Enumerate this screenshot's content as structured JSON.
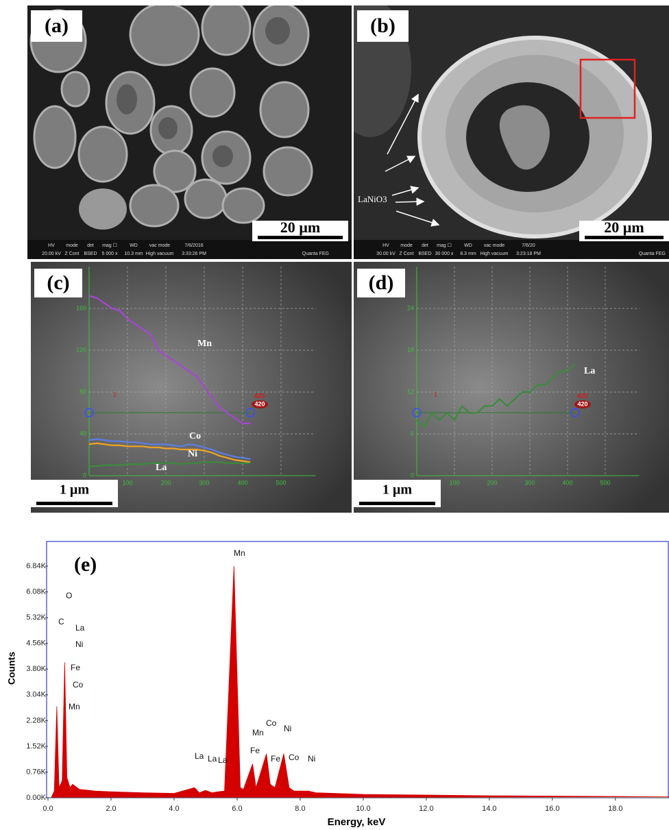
{
  "panels": [
    {
      "label": "(a)",
      "scale_bar": "20 µm",
      "instrument": "Quanta FEG",
      "info_headers": [
        "HV",
        "mode",
        "det",
        "mag ☐",
        "WD",
        "vac mode",
        "7/6/2016"
      ],
      "info_values": [
        "20.00 kV",
        "Z Cont",
        "BSED",
        "5 000 x",
        "10.3 mm",
        "High vacuum",
        "3:33:26 PM"
      ]
    },
    {
      "label": "(b)",
      "scale_bar": "20 µm",
      "instrument": "Quanta FEG",
      "annotation": "LaNiO3",
      "info_headers": [
        "HV",
        "mode",
        "det",
        "mag ☐",
        "WD",
        "vac mode",
        "7/6/20"
      ],
      "info_values": [
        "30.00 kV",
        "Z Cont",
        "BSED",
        "30 000 x",
        "8.3 mm",
        "High vacuum",
        "3:23:18 PM"
      ]
    }
  ],
  "chart_data": [
    {
      "type": "line",
      "panel_label": "(c)",
      "scale_bar": "1 µm",
      "cursor_start": "1",
      "cursor_end": "420",
      "x": [
        0,
        20,
        40,
        60,
        80,
        100,
        120,
        140,
        160,
        180,
        200,
        220,
        240,
        260,
        280,
        300,
        320,
        340,
        360,
        380,
        400,
        420
      ],
      "series": [
        {
          "name": "Mn",
          "color": "#a845d8",
          "values": [
            172,
            170,
            165,
            160,
            158,
            150,
            145,
            140,
            135,
            120,
            115,
            110,
            105,
            100,
            95,
            85,
            75,
            65,
            60,
            55,
            50,
            50
          ]
        },
        {
          "name": "Co",
          "color": "#5b7fe6",
          "values": [
            34,
            35,
            34,
            33,
            33,
            32,
            32,
            31,
            30,
            30,
            30,
            29,
            28,
            30,
            29,
            27,
            25,
            22,
            20,
            18,
            17,
            16
          ]
        },
        {
          "name": "Ni",
          "color": "#f0a424",
          "values": [
            30,
            31,
            30,
            29,
            29,
            28,
            28,
            28,
            27,
            27,
            26,
            26,
            25,
            25,
            25,
            24,
            22,
            19,
            17,
            15,
            14,
            13
          ]
        },
        {
          "name": "La",
          "color": "#3a8c3a",
          "values": [
            9,
            9,
            10,
            10,
            10,
            11,
            11,
            11,
            12,
            12,
            12,
            12,
            11,
            12,
            12,
            13,
            13,
            13,
            12,
            12,
            12,
            12
          ]
        }
      ],
      "xlim": [
        0,
        590
      ],
      "ylim": [
        0,
        200
      ],
      "xticks": [
        100,
        200,
        300,
        400,
        500
      ],
      "yticks": [
        0,
        40,
        80,
        120,
        160
      ],
      "grid": true
    },
    {
      "type": "line",
      "panel_label": "(d)",
      "scale_bar": "1 µm",
      "cursor_start": "1",
      "cursor_end": "420",
      "x": [
        0,
        20,
        40,
        60,
        80,
        100,
        120,
        140,
        160,
        180,
        200,
        220,
        240,
        260,
        280,
        300,
        320,
        340,
        360,
        380,
        400,
        420
      ],
      "series": [
        {
          "name": "La",
          "color": "#3a8c3a",
          "values": [
            8,
            7,
            9,
            8,
            9,
            8,
            10,
            9,
            9,
            10,
            10,
            11,
            10,
            11,
            12,
            12,
            13,
            13,
            14,
            15,
            15,
            16
          ]
        }
      ],
      "xlim": [
        0,
        590
      ],
      "ylim": [
        0,
        30
      ],
      "xticks": [
        100,
        200,
        300,
        400,
        500
      ],
      "yticks": [
        0,
        6,
        12,
        18,
        24
      ],
      "grid": true
    },
    {
      "type": "area",
      "panel_label": "(e)",
      "x_label": "Energy, keV",
      "y_label": "Counts",
      "color": "#d40000",
      "x": [
        0.1,
        0.2,
        0.28,
        0.35,
        0.45,
        0.53,
        0.6,
        0.7,
        0.78,
        0.85,
        1.0,
        1.5,
        2.0,
        3.0,
        4.0,
        4.65,
        4.8,
        5.0,
        5.2,
        5.4,
        5.6,
        5.9,
        6.1,
        6.2,
        6.49,
        6.6,
        6.93,
        7.05,
        7.2,
        7.48,
        7.65,
        7.8,
        8.26,
        8.5,
        10,
        12,
        14,
        16,
        18,
        19.7
      ],
      "values": [
        0,
        200,
        2700,
        300,
        500,
        4000,
        600,
        300,
        400,
        350,
        250,
        200,
        180,
        150,
        130,
        300,
        150,
        220,
        150,
        180,
        200,
        6840,
        300,
        250,
        1000,
        300,
        1300,
        400,
        300,
        1300,
        300,
        200,
        200,
        150,
        100,
        80,
        60,
        50,
        40,
        30
      ],
      "annotations": [
        "O",
        "C",
        "La",
        "Ni",
        "Fe",
        "Co",
        "Mn",
        "La",
        "La",
        "La",
        "Mn",
        "Mn",
        "Fe",
        "Fe",
        "Co",
        "Co",
        "Ni",
        "Ni"
      ],
      "xlim": [
        0,
        19.7
      ],
      "ylim": [
        0,
        7570
      ],
      "xticks": [
        {
          "value": 0,
          "label": "0.0"
        },
        {
          "value": 2,
          "label": "2.0"
        },
        {
          "value": 4,
          "label": "4.0"
        },
        {
          "value": 6,
          "label": "6.0"
        },
        {
          "value": 8,
          "label": "8.0"
        },
        {
          "value": 10,
          "label": "10.0"
        },
        {
          "value": 12,
          "label": "12.0"
        },
        {
          "value": 14,
          "label": "14.0"
        },
        {
          "value": 16,
          "label": "16.0"
        },
        {
          "value": 18,
          "label": "18.0"
        }
      ],
      "yticks": [
        {
          "value": 0,
          "label": "0.00K"
        },
        {
          "value": 760,
          "label": "0.76K"
        },
        {
          "value": 1520,
          "label": "1.52K"
        },
        {
          "value": 2280,
          "label": "2.28K"
        },
        {
          "value": 3040,
          "label": "3.04K"
        },
        {
          "value": 3800,
          "label": "3.80K"
        },
        {
          "value": 4560,
          "label": "4.56K"
        },
        {
          "value": 5320,
          "label": "5.32K"
        },
        {
          "value": 6080,
          "label": "6.08K"
        },
        {
          "value": 6840,
          "label": "6.84K"
        }
      ]
    }
  ]
}
